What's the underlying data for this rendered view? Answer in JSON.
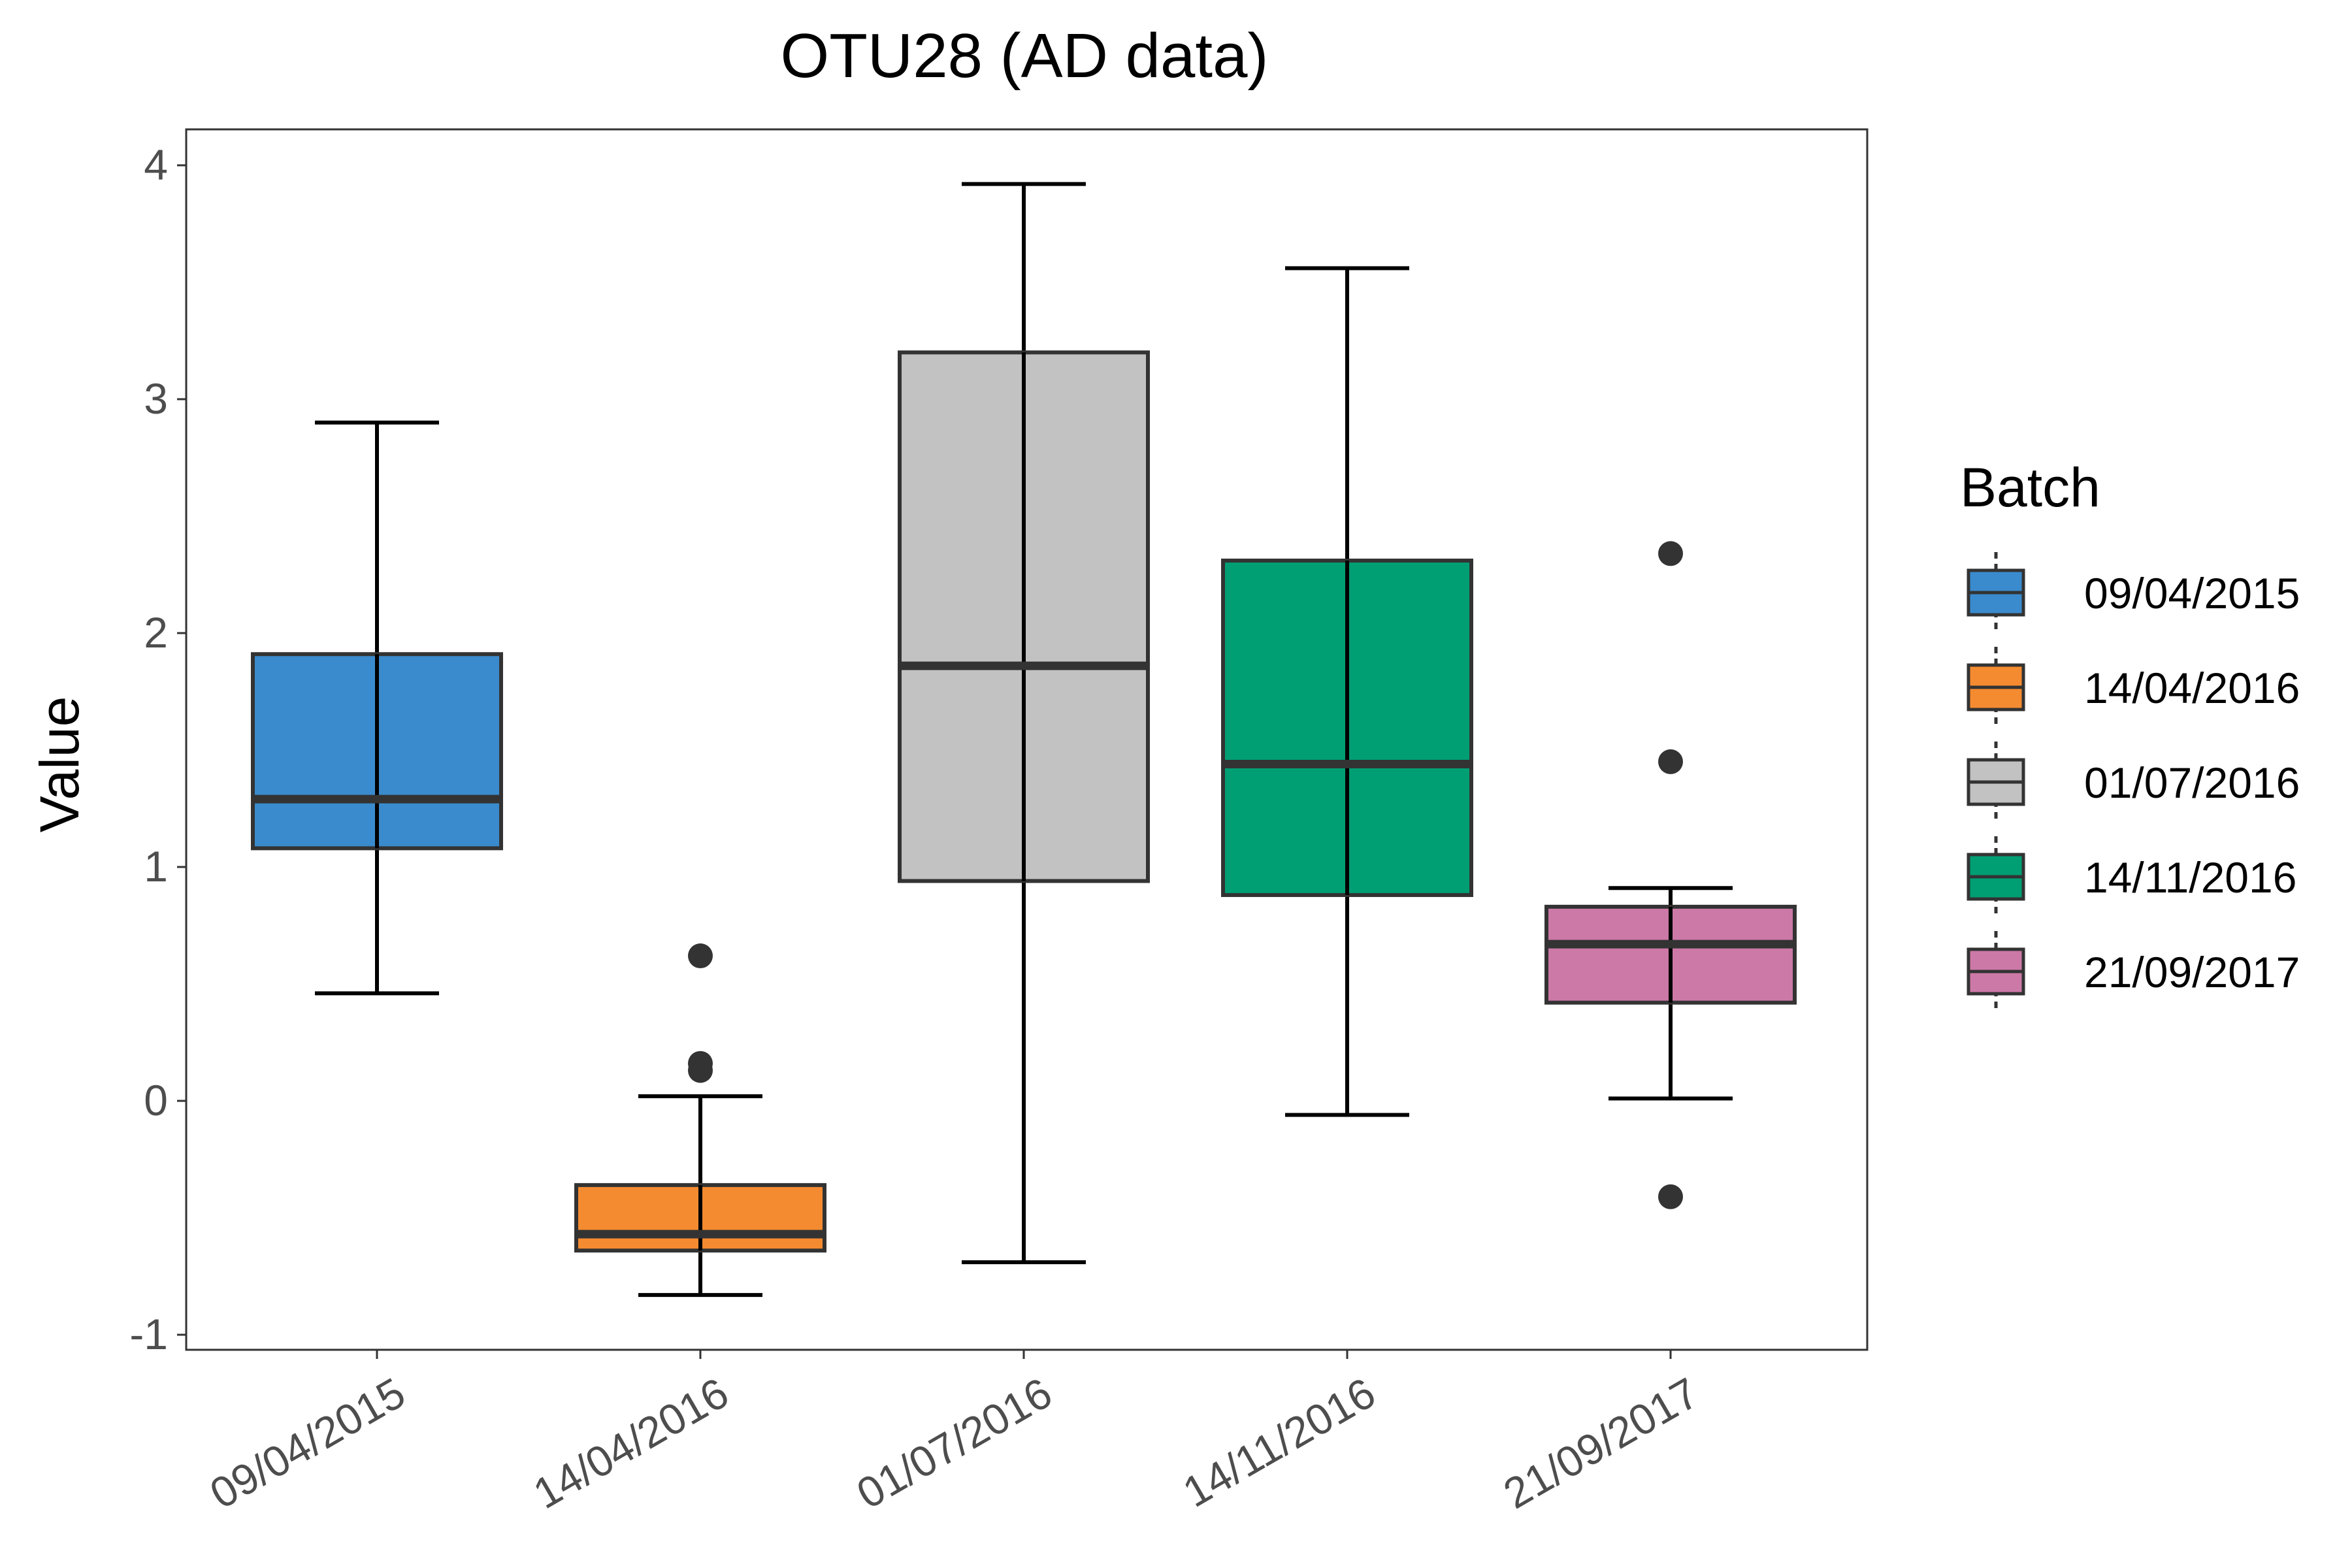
{
  "chart_data": {
    "type": "boxplot",
    "title": "OTU28 (AD data)",
    "xlabel": "",
    "ylabel": "Value",
    "ylim": [
      -1.05,
      4.1
    ],
    "yticks": [
      -1,
      0,
      1,
      2,
      3,
      4
    ],
    "categories": [
      "09/04/2015",
      "14/04/2016",
      "01/07/2016",
      "14/11/2016",
      "21/09/2017"
    ],
    "boxes": [
      {
        "category": "09/04/2015",
        "whisker_low": 0.46,
        "q1": 1.08,
        "median": 1.29,
        "q3": 1.91,
        "whisker_high": 2.9,
        "outliers": []
      },
      {
        "category": "14/04/2016",
        "whisker_low": -0.83,
        "q1": -0.64,
        "median": -0.57,
        "q3": -0.36,
        "whisker_high": 0.02,
        "outliers": [
          0.62,
          0.16,
          0.13
        ]
      },
      {
        "category": "01/07/2016",
        "whisker_low": -0.69,
        "q1": 0.94,
        "median": 1.86,
        "q3": 3.2,
        "whisker_high": 3.92,
        "outliers": []
      },
      {
        "category": "14/11/2016",
        "whisker_low": -0.06,
        "q1": 0.88,
        "median": 1.44,
        "q3": 2.31,
        "whisker_high": 3.56,
        "outliers": []
      },
      {
        "category": "21/09/2017",
        "whisker_low": 0.01,
        "q1": 0.42,
        "median": 0.67,
        "q3": 0.83,
        "whisker_high": 0.91,
        "outliers": [
          2.34,
          1.45,
          -0.41
        ]
      }
    ],
    "colors": [
      "#3a8bcd",
      "#f58b30",
      "#c2c2c2",
      "#009f73",
      "#cc79a7"
    ],
    "grid": false,
    "legend": {
      "title": "Batch",
      "placement": "right",
      "entries": [
        "09/04/2015",
        "14/04/2016",
        "01/07/2016",
        "14/11/2016",
        "21/09/2017"
      ]
    }
  }
}
